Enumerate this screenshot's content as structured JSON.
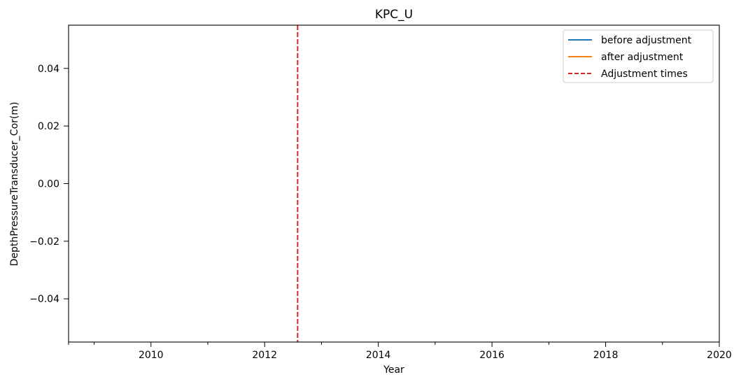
{
  "chart_data": {
    "type": "line",
    "title": "KPC_U",
    "xlabel": "Year",
    "ylabel": "DepthPressureTransducer_Cor(m)",
    "xlim": [
      2008.55,
      2020.0
    ],
    "ylim": [
      -0.055,
      0.055
    ],
    "x_major_ticks": [
      2010,
      2012,
      2014,
      2016,
      2018,
      2020
    ],
    "x_minor_ticks": [
      2009,
      2011,
      2013,
      2015,
      2017,
      2019
    ],
    "x_tick_labels": [
      "2010",
      "2012",
      "2014",
      "2016",
      "2018",
      "2020"
    ],
    "y_ticks": [
      -0.04,
      -0.02,
      0.0,
      0.02,
      0.04
    ],
    "y_tick_labels": [
      "−0.04",
      "−0.02",
      "0.00",
      "0.02",
      "0.04"
    ],
    "grid": false,
    "legend_position": "top-right",
    "series": [
      {
        "name": "before adjustment",
        "color": "#1f77b4",
        "style": "solid",
        "x": [],
        "y": []
      },
      {
        "name": "after adjustment",
        "color": "#ff7f0e",
        "style": "solid",
        "x": [],
        "y": []
      },
      {
        "name": "Adjustment times",
        "color": "#d62728",
        "style": "dashed",
        "kind": "vertical-line",
        "x": [
          2012.58
        ]
      }
    ]
  }
}
